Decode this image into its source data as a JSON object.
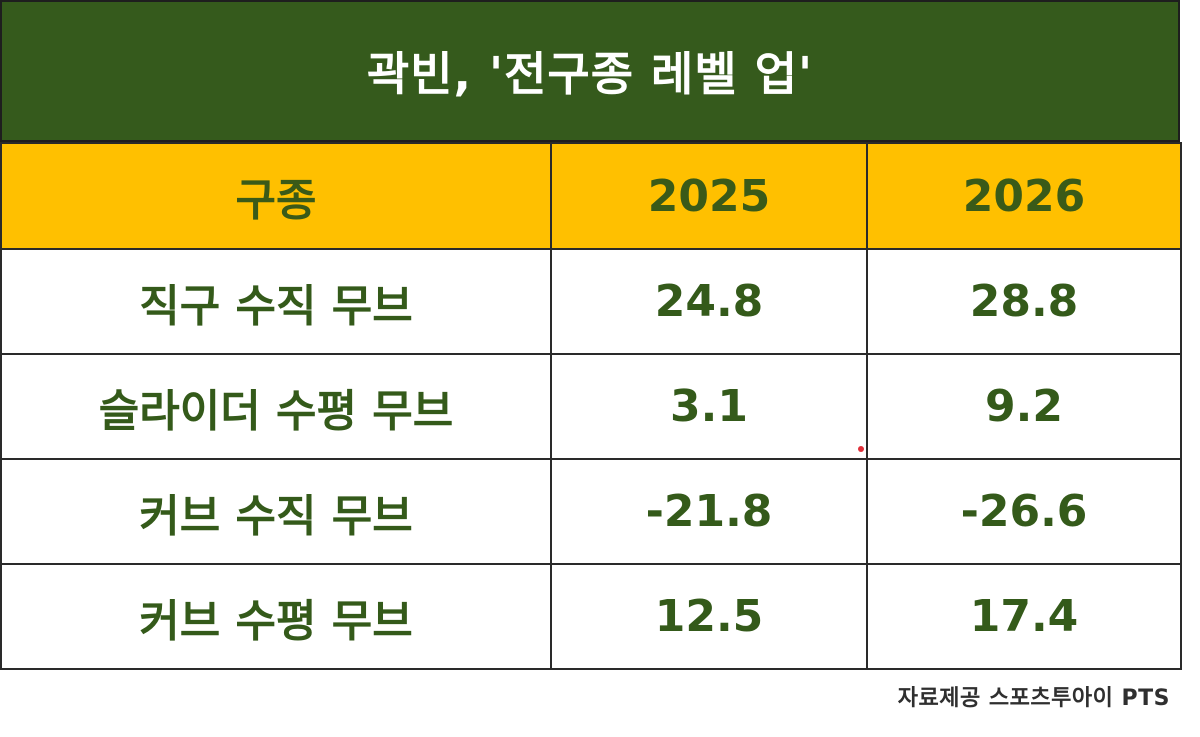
{
  "title": "곽빈, '전구종 레벨 업'",
  "table": {
    "headers": [
      "구종",
      "2025",
      "2026"
    ],
    "rows": [
      {
        "pitch": "직구 수직 무브",
        "y2025": "24.8",
        "y2026": "28.8"
      },
      {
        "pitch": "슬라이더 수평 무브",
        "y2025": "3.1",
        "y2026": "9.2"
      },
      {
        "pitch": "커브 수직 무브",
        "y2025": "-21.8",
        "y2026": "-26.6"
      },
      {
        "pitch": "커브 수평 무브",
        "y2025": "12.5",
        "y2026": "17.4"
      }
    ]
  },
  "source": "자료제공 스포츠투아이 PTS",
  "colors": {
    "title_bg": "#355a1c",
    "header_bg": "#ffc000",
    "text_green": "#345a1a"
  }
}
